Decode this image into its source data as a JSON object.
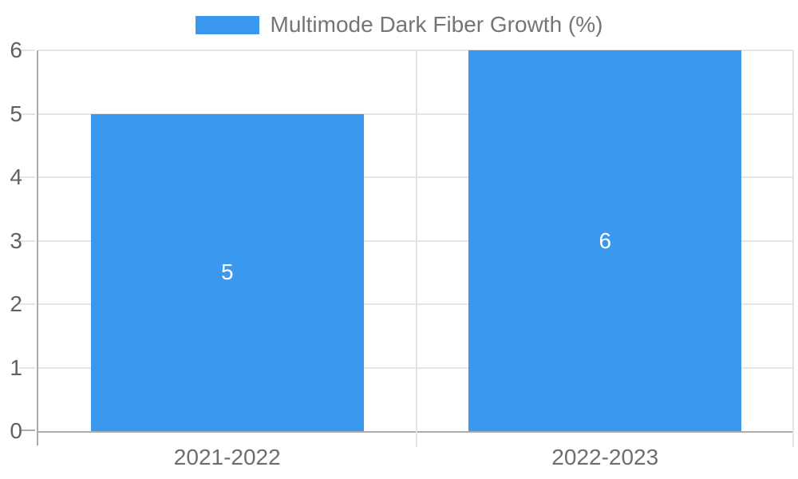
{
  "chart_data": {
    "type": "bar",
    "title": "",
    "legend_position": "top",
    "categories": [
      "2021-2022",
      "2022-2023"
    ],
    "series": [
      {
        "name": "Multimode Dark Fiber Growth (%)",
        "values": [
          5,
          6
        ]
      }
    ],
    "value_labels": [
      "5",
      "6"
    ],
    "ylim": [
      0,
      6
    ],
    "ytick_labels": [
      "0",
      "1",
      "2",
      "3",
      "4",
      "5",
      "6"
    ],
    "grid": true,
    "colors": {
      "series": "#3A99EE",
      "value_label": "#FFFFFF",
      "axis_line": "#ABABAB",
      "gridline": "#E4E4E4",
      "ytick_label": "#616161",
      "category_label": "#6E6E6E",
      "legend_label": "#757575",
      "background": "#FFFFFF"
    }
  }
}
